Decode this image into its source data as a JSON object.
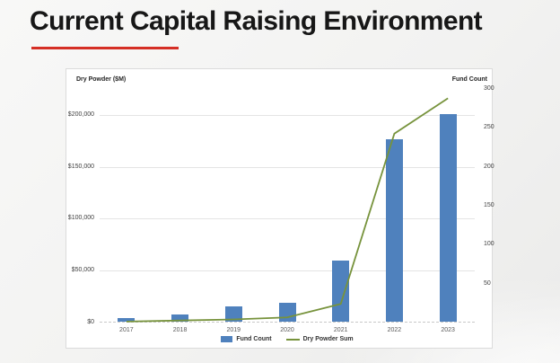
{
  "slide": {
    "title": "Current Capital Raising Environment",
    "accent_color": "#d52f25",
    "background_color": "#f2f2f1"
  },
  "chart_data": {
    "type": "combo-bar-line",
    "categories": [
      "2017",
      "2018",
      "2019",
      "2020",
      "2021",
      "2022",
      "2023"
    ],
    "series": [
      {
        "name": "Fund Count",
        "type": "bar",
        "axis": "right",
        "color": "#4f81bd",
        "values": [
          5,
          9,
          20,
          24,
          78,
          234,
          266
        ]
      },
      {
        "name": "Dry Powder Sum",
        "type": "line",
        "axis": "left",
        "color": "#77933c",
        "values": [
          1000,
          2000,
          3000,
          5000,
          18000,
          182000,
          216000
        ]
      }
    ],
    "left_axis": {
      "title": "Dry Powder ($M)",
      "max": 225000,
      "ticks": [
        {
          "label": "$200,000",
          "value": 200000
        },
        {
          "label": "$150,000",
          "value": 150000
        },
        {
          "label": "$100,000",
          "value": 100000
        },
        {
          "label": "$50,000",
          "value": 50000
        },
        {
          "label": "$0",
          "value": 0
        }
      ]
    },
    "right_axis": {
      "title": "Fund Count",
      "max": 300,
      "ticks": [
        {
          "label": "300",
          "value": 300
        },
        {
          "label": "250",
          "value": 250
        },
        {
          "label": "200",
          "value": 200
        },
        {
          "label": "150",
          "value": 150
        },
        {
          "label": "100",
          "value": 100
        },
        {
          "label": "50",
          "value": 50
        }
      ]
    },
    "legend": [
      "Fund Count",
      "Dry Powder Sum"
    ],
    "legend_position": "bottom",
    "grid": true
  }
}
